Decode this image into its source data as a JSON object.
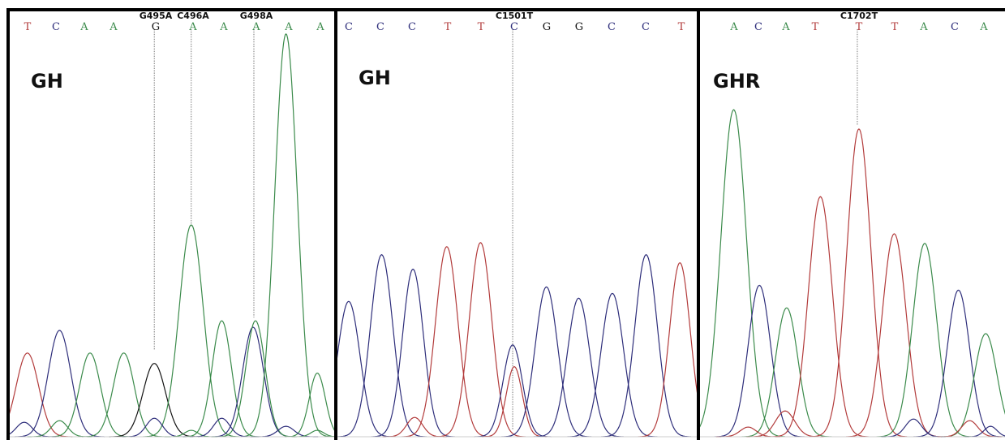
{
  "colors": {
    "A": "#3a8a4a",
    "C": "#2d2d7a",
    "G": "#111111",
    "T": "#b23a3a",
    "marker": "#777777"
  },
  "panels": [
    {
      "gene": "GH",
      "bases": [
        "T",
        "C",
        "A",
        "A",
        "G",
        "A",
        "A",
        "A",
        "A",
        "A"
      ],
      "mutations": [
        {
          "label": "G495A",
          "base_index": 4
        },
        {
          "label": "C496A",
          "base_index": 5
        },
        {
          "label": "G498A",
          "base_index": 7
        }
      ]
    },
    {
      "gene": "GH",
      "bases": [
        "C",
        "C",
        "C",
        "T",
        "T",
        "C",
        "G",
        "G",
        "C",
        "C",
        "T"
      ],
      "mutations": [
        {
          "label": "C1501T",
          "base_index": 5
        }
      ]
    },
    {
      "gene": "GHR",
      "bases": [
        "A",
        "C",
        "A",
        "T",
        "T",
        "T",
        "A",
        "C",
        "A"
      ],
      "mutations": [
        {
          "label": "C1702T",
          "base_index": 4
        }
      ]
    }
  ]
}
